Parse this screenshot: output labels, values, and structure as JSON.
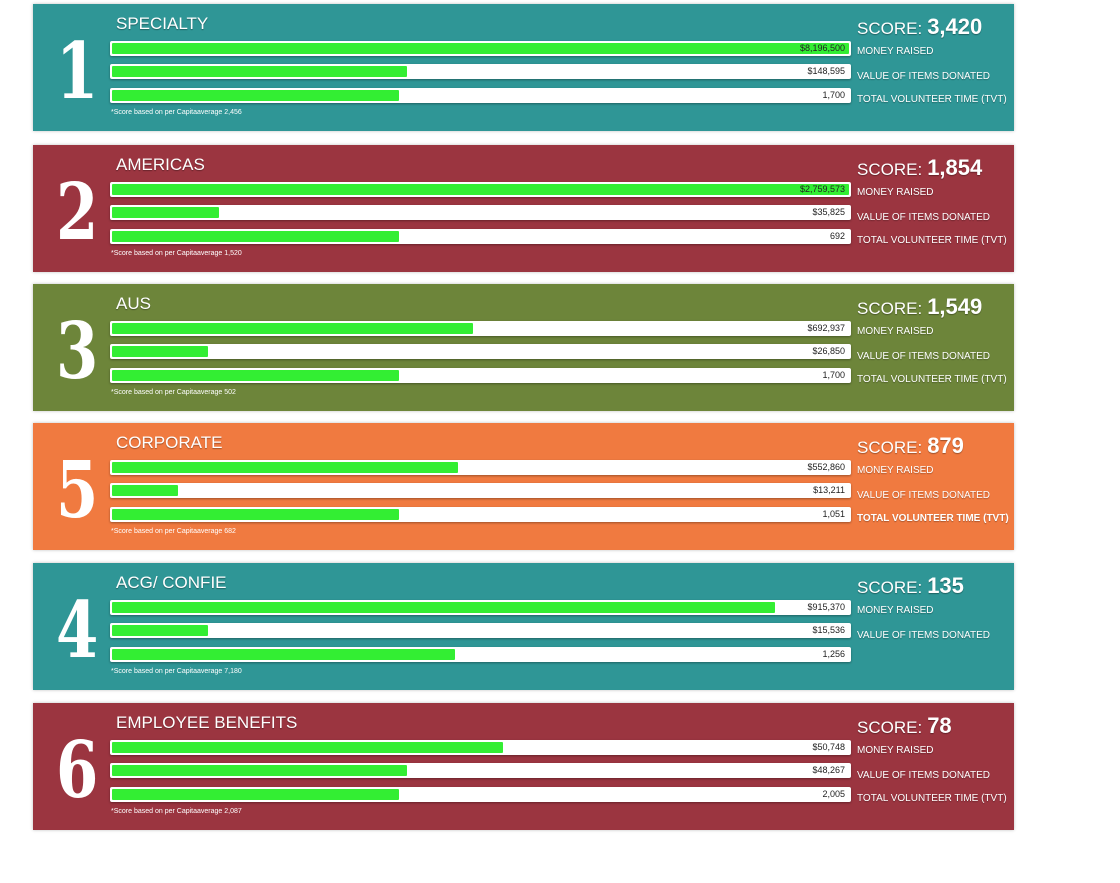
{
  "chart_data": [
    {
      "type": "bar",
      "rank": "1",
      "title": "SPECIALTY",
      "score_label": "SCORE:",
      "score": "3,420",
      "color": "#2f9696",
      "categories": [
        "MONEY RAISED",
        "VALUE OF ITEMS DONATED",
        "TOTAL VOLUNTEER TIME (TVT)"
      ],
      "values": [
        8196500,
        148595,
        1700
      ],
      "value_labels": [
        "$8,196,500",
        "$148,595",
        "1,700"
      ],
      "fill_fraction": [
        1.0,
        0.4,
        0.39
      ],
      "footnote": "*Score based on per Capitaaverage 2,456"
    },
    {
      "type": "bar",
      "rank": "2",
      "title": "AMERICAS",
      "score_label": "SCORE:",
      "score": "1,854",
      "color": "#9b3540",
      "categories": [
        "MONEY RAISED",
        "VALUE OF ITEMS DONATED",
        "TOTAL VOLUNTEER TIME (TVT)"
      ],
      "values": [
        2759573,
        35825,
        692
      ],
      "value_labels": [
        "$2,759,573",
        "$35,825",
        "692"
      ],
      "fill_fraction": [
        1.0,
        0.145,
        0.39
      ],
      "footnote": "*Score based on per Capitaaverage 1,520"
    },
    {
      "type": "bar",
      "rank": "3",
      "title": "AUS",
      "score_label": "SCORE:",
      "score": "1,549",
      "color": "#6d853a",
      "categories": [
        "MONEY RAISED",
        "VALUE OF ITEMS DONATED",
        "TOTAL VOLUNTEER TIME (TVT)"
      ],
      "values": [
        692937,
        26850,
        1700
      ],
      "value_labels": [
        "$692,937",
        "$26,850",
        "1,700"
      ],
      "fill_fraction": [
        0.49,
        0.13,
        0.39
      ],
      "footnote": "*Score based on per Capitaaverage 502"
    },
    {
      "type": "bar",
      "rank": "5",
      "title": "CORPORATE",
      "score_label": "SCORE:",
      "score": "879",
      "color": "#f07a40",
      "categories": [
        "MONEY RAISED",
        "VALUE OF ITEMS DONATED",
        "TOTAL VOLUNTEER TIME (TVT)"
      ],
      "values": [
        552860,
        13211,
        1051
      ],
      "value_labels": [
        "$552,860",
        "$13,211",
        "1,051"
      ],
      "fill_fraction": [
        0.47,
        0.09,
        0.39
      ],
      "footnote": "*Score based on per Capitaaverage 682",
      "bold_last": true
    },
    {
      "type": "bar",
      "rank": "4",
      "title": "ACG/ CONFIE",
      "score_label": "SCORE:",
      "score": "135",
      "color": "#2f9696",
      "categories": [
        "MONEY RAISED",
        "VALUE OF ITEMS DONATED",
        ""
      ],
      "values": [
        915370,
        15536,
        1256
      ],
      "value_labels": [
        "$915,370",
        "$15,536",
        "1,256"
      ],
      "fill_fraction": [
        0.9,
        0.13,
        0.465
      ],
      "footnote": "*Score based on per Capitaaverage 7,180"
    },
    {
      "type": "bar",
      "rank": "6",
      "title": "EMPLOYEE BENEFITS",
      "score_label": "SCORE:",
      "score": "78",
      "color": "#9b3540",
      "categories": [
        "MONEY RAISED",
        "VALUE OF ITEMS DONATED",
        "TOTAL VOLUNTEER TIME (TVT)"
      ],
      "values": [
        50748,
        48267,
        2005
      ],
      "value_labels": [
        "$50,748",
        "$48,267",
        "2,005"
      ],
      "fill_fraction": [
        0.53,
        0.4,
        0.39
      ],
      "footnote": "*Score based on per Capitaaverage 2,087"
    }
  ]
}
